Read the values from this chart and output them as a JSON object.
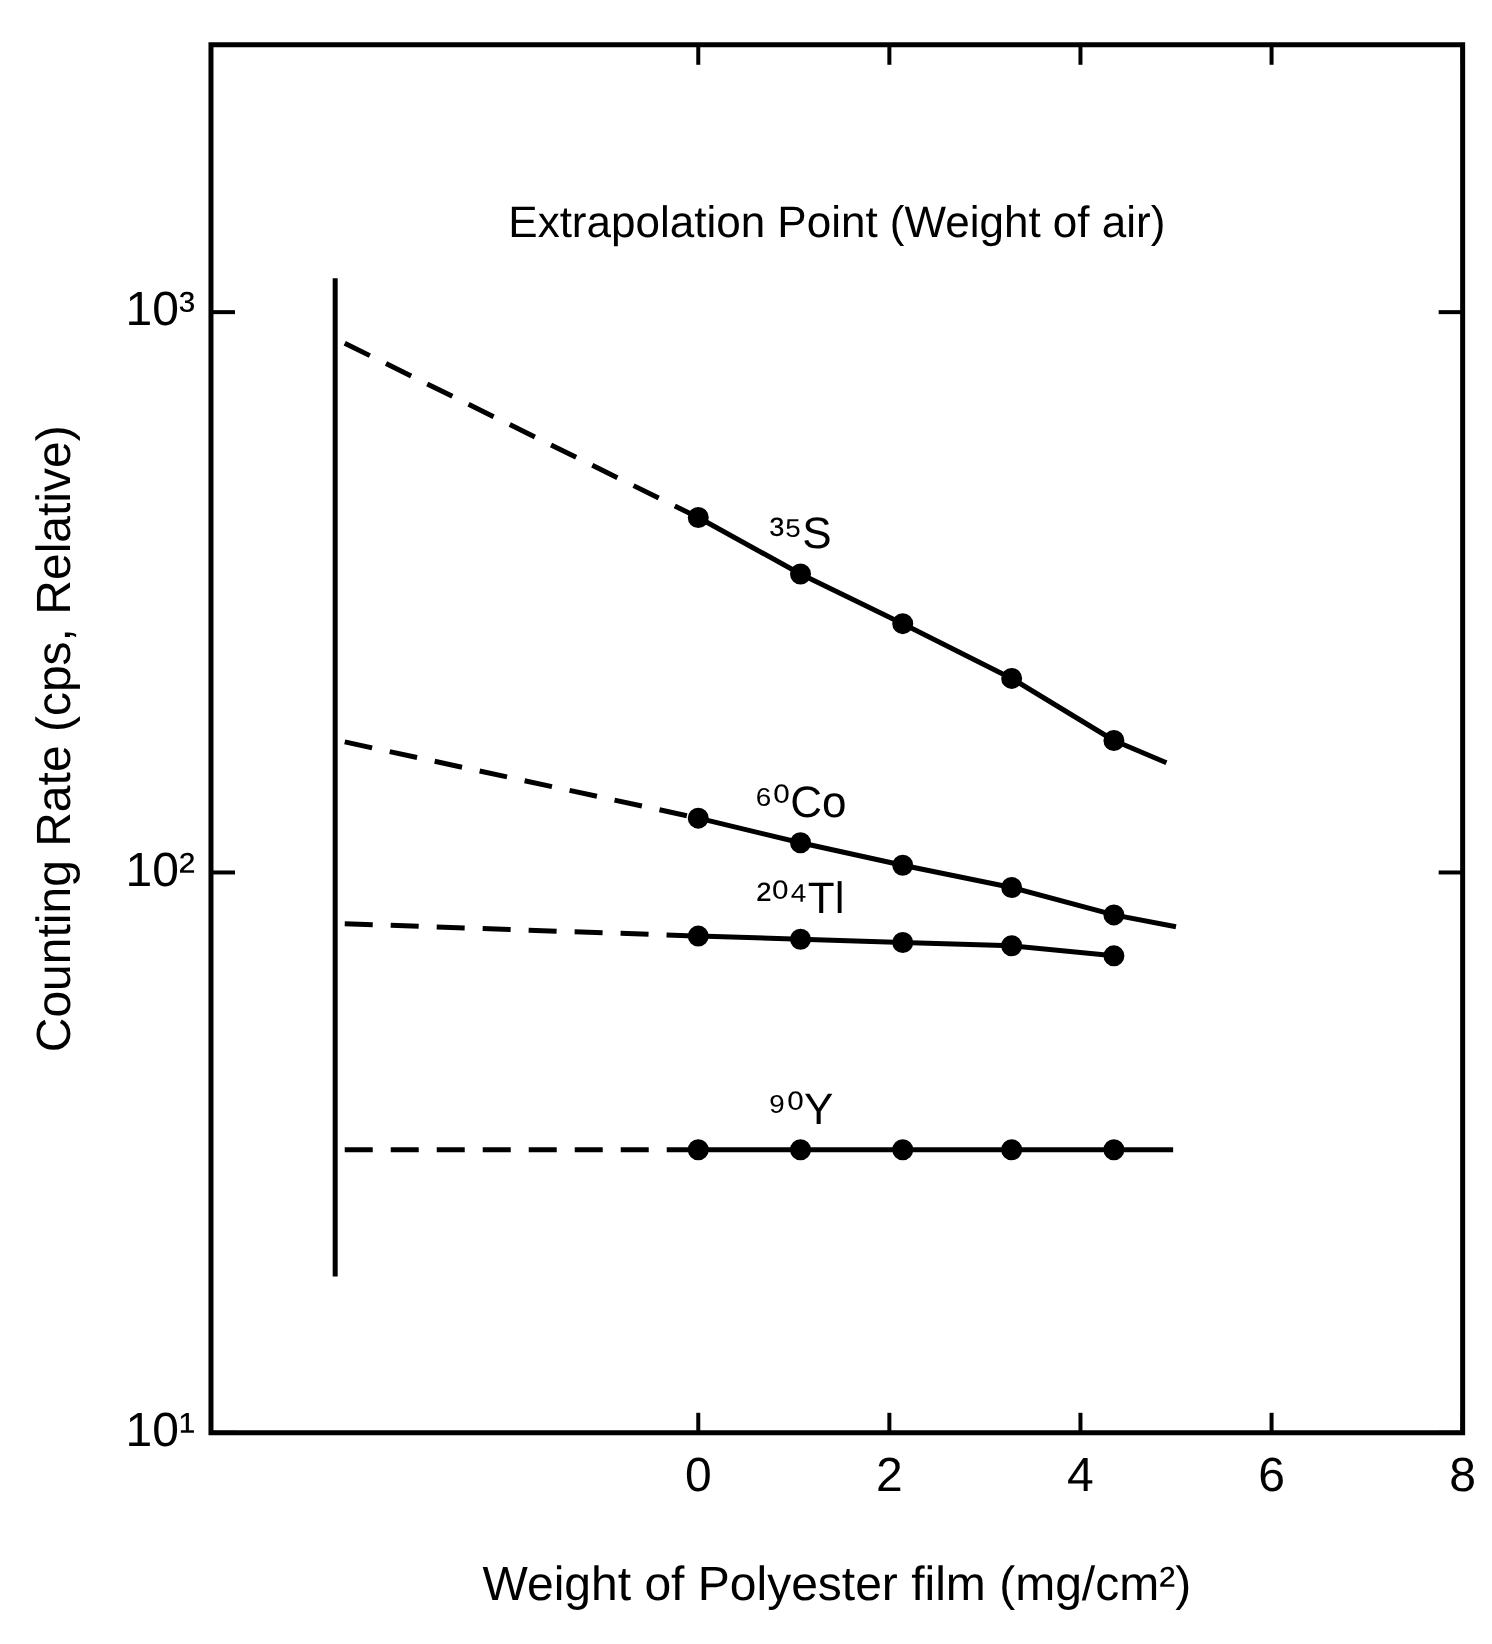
{
  "chart_data": {
    "type": "line",
    "xlabel": "Weight of Polyester film (mg/cm²)",
    "ylabel": "Counting Rate (cps, Relative)",
    "xlim": [
      -5.1,
      8
    ],
    "xticks": [
      0,
      2,
      4,
      6,
      8
    ],
    "ylim": [
      10,
      3000
    ],
    "yticks": [
      {
        "value": 10,
        "label": "10¹"
      },
      {
        "value": 100,
        "label": "10²"
      },
      {
        "value": 1000,
        "label": "10³"
      }
    ],
    "log": "y",
    "grid": false,
    "legend": false,
    "annotations": [
      "Extrapolation Point (Weight of air)"
    ],
    "series": [
      {
        "color": "#000000",
        "line_style": "solid",
        "x": [
          -3.8,
          -3.8
        ],
        "values": [
          19,
          1150
        ]
      },
      {
        "color": "#000000",
        "line_style": "dashed",
        "x": [
          -3.7,
          0
        ],
        "values": [
          880,
          430
        ]
      },
      {
        "name": "³⁵S",
        "color": "#000000",
        "marker": "circle",
        "line_style": "solid",
        "x": [
          0,
          1.07,
          2.14,
          3.28,
          4.35
        ],
        "values": [
          430,
          341,
          278,
          222,
          172
        ]
      },
      {
        "color": "#000000",
        "line_style": "solid",
        "x": [
          4.35,
          4.9
        ],
        "values": [
          172,
          157
        ]
      },
      {
        "color": "#000000",
        "line_style": "dashed",
        "x": [
          -3.7,
          0
        ],
        "values": [
          171,
          125
        ]
      },
      {
        "name": "⁶⁰Co",
        "color": "#000000",
        "marker": "circle",
        "line_style": "solid",
        "x": [
          0,
          1.07,
          2.14,
          3.28,
          4.35
        ],
        "values": [
          125,
          113,
          103,
          94,
          84
        ]
      },
      {
        "color": "#000000",
        "line_style": "solid",
        "x": [
          4.35,
          5.0
        ],
        "values": [
          84,
          80
        ]
      },
      {
        "color": "#000000",
        "line_style": "dashed",
        "x": [
          -3.7,
          0
        ],
        "values": [
          81,
          77
        ]
      },
      {
        "name": "²⁰⁴Tl",
        "color": "#000000",
        "marker": "circle",
        "line_style": "solid",
        "x": [
          0,
          1.07,
          2.14,
          3.28,
          4.35
        ],
        "values": [
          77,
          76,
          75,
          74,
          71
        ]
      },
      {
        "color": "#000000",
        "line_style": "dashed",
        "x": [
          -3.7,
          0
        ],
        "values": [
          32,
          32
        ]
      },
      {
        "name": "⁹⁰Y",
        "color": "#000000",
        "marker": "circle",
        "line_style": "solid",
        "x": [
          0,
          1.07,
          2.14,
          3.28,
          4.35
        ],
        "values": [
          32,
          32,
          32,
          32,
          32
        ]
      },
      {
        "color": "#000000",
        "line_style": "solid",
        "x": [
          4.35,
          4.97
        ],
        "values": [
          32,
          32
        ]
      }
    ]
  }
}
